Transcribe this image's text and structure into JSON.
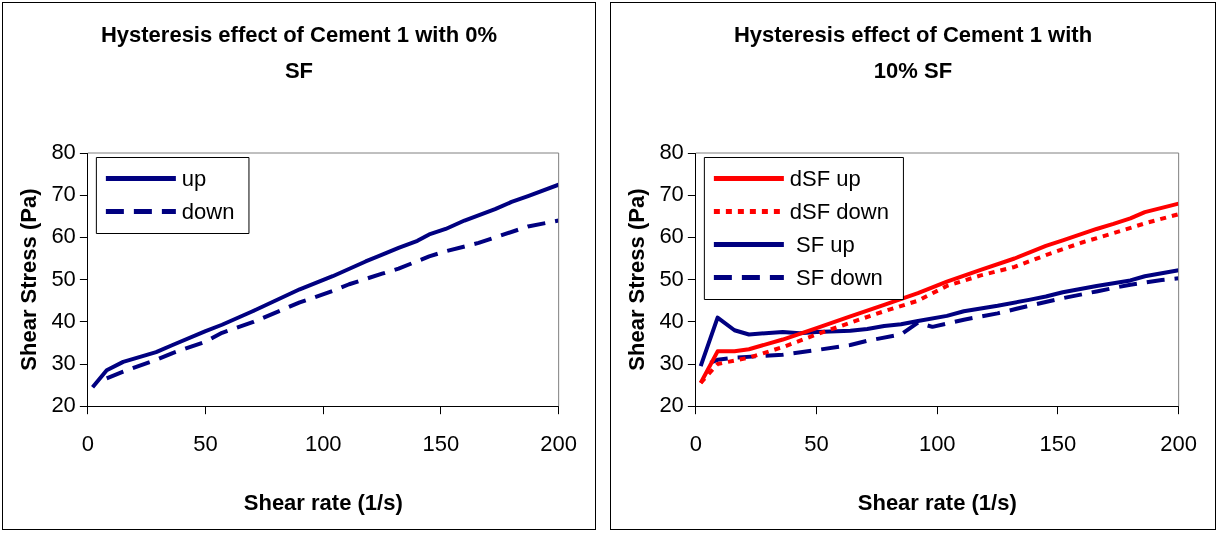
{
  "chart_data": [
    {
      "type": "line",
      "title": "Hysteresis effect of Cement 1 with 0% SF",
      "xlabel": "Shear rate (1/s)",
      "ylabel": "Shear Stress (Pa)",
      "xlim": [
        0,
        200
      ],
      "xticks": [
        0,
        50,
        100,
        150,
        200
      ],
      "ylim": [
        20,
        80
      ],
      "yticks": [
        20,
        30,
        40,
        50,
        60,
        70,
        80
      ],
      "grid": false,
      "legend": "top left",
      "marker": "none",
      "series": [
        {
          "name": "up",
          "color": "#000080",
          "line_style": "solid",
          "x": [
            2,
            8,
            15,
            29,
            36,
            50,
            57,
            70,
            90,
            104,
            118,
            132,
            140,
            145,
            152,
            160,
            173,
            180,
            187,
            200
          ],
          "values": [
            24.5,
            28.5,
            30.5,
            32.8,
            34.5,
            37.8,
            39.3,
            42.5,
            47.7,
            50.8,
            54.3,
            57.5,
            59.2,
            60.7,
            62,
            64,
            66.7,
            68.4,
            69.8,
            72.5
          ]
        },
        {
          "name": "down",
          "color": "#000080",
          "line_style": "dashed",
          "x": [
            8,
            15,
            29,
            36,
            50,
            57,
            70,
            90,
            104,
            111,
            125,
            132,
            145,
            152,
            166,
            173,
            187,
            200
          ],
          "values": [
            26.6,
            28.2,
            31,
            32.6,
            35.3,
            37.4,
            39.9,
            44.6,
            47.3,
            48.9,
            51.4,
            52.6,
            55.5,
            56.7,
            58.7,
            60,
            62.6,
            64
          ]
        }
      ]
    },
    {
      "type": "line",
      "title": "Hysteresis effect of Cement 1 with 10% SF",
      "xlabel": "Shear rate (1/s)",
      "ylabel": "Shear Stress (Pa)",
      "xlim": [
        0,
        200
      ],
      "xticks": [
        0,
        50,
        100,
        150,
        200
      ],
      "ylim": [
        20,
        80
      ],
      "yticks": [
        20,
        30,
        40,
        50,
        60,
        70,
        80
      ],
      "grid": false,
      "legend": "top left",
      "marker": "none",
      "series": [
        {
          "name": "dSF up",
          "color": "#ff0000",
          "line_style": "solid",
          "x": [
            2,
            9,
            16,
            22,
            36,
            50,
            64,
            78,
            92,
            104,
            118,
            132,
            145,
            152,
            166,
            173,
            180,
            186,
            193,
            200
          ],
          "values": [
            25.5,
            33,
            33,
            33.5,
            35.8,
            38.5,
            41.3,
            44,
            46.8,
            49.5,
            52.3,
            55,
            58,
            59.3,
            62,
            63.2,
            64.5,
            66,
            67,
            68
          ]
        },
        {
          "name": "dSF down",
          "color": "#ff0000",
          "line_style": "dotted",
          "x": [
            2,
            9,
            22,
            36,
            50,
            64,
            78,
            92,
            104,
            118,
            132,
            145,
            160,
            173,
            187,
            200
          ],
          "values": [
            25.5,
            30,
            31.5,
            34,
            37,
            39.8,
            42.5,
            45,
            48.5,
            51,
            53,
            55.8,
            58.8,
            61,
            63.5,
            65.5
          ]
        },
        {
          "name": " SF up",
          "color": "#000080",
          "line_style": "solid",
          "x": [
            2,
            9,
            16,
            22,
            36,
            43,
            50,
            64,
            71,
            78,
            85,
            92,
            104,
            111,
            125,
            138,
            145,
            152,
            166,
            180,
            186,
            200
          ],
          "values": [
            29.5,
            41,
            38,
            37,
            37.6,
            37.3,
            37.6,
            37.9,
            38.3,
            39,
            39.4,
            40.2,
            41.4,
            42.5,
            43.8,
            45.2,
            46,
            47,
            48.5,
            49.8,
            50.8,
            52.2
          ]
        },
        {
          "name": " SF down",
          "color": "#000080",
          "line_style": "dashed",
          "x": [
            6,
            9,
            16,
            36,
            50,
            64,
            71,
            85,
            92,
            98,
            111,
            125,
            138,
            152,
            166,
            180,
            193,
            200
          ],
          "values": [
            30.3,
            31,
            31.5,
            32.2,
            33.3,
            34.5,
            35.5,
            37,
            39.8,
            38.8,
            40.5,
            42,
            43.8,
            45.6,
            47.2,
            48.8,
            49.9,
            50.3
          ]
        }
      ]
    }
  ]
}
